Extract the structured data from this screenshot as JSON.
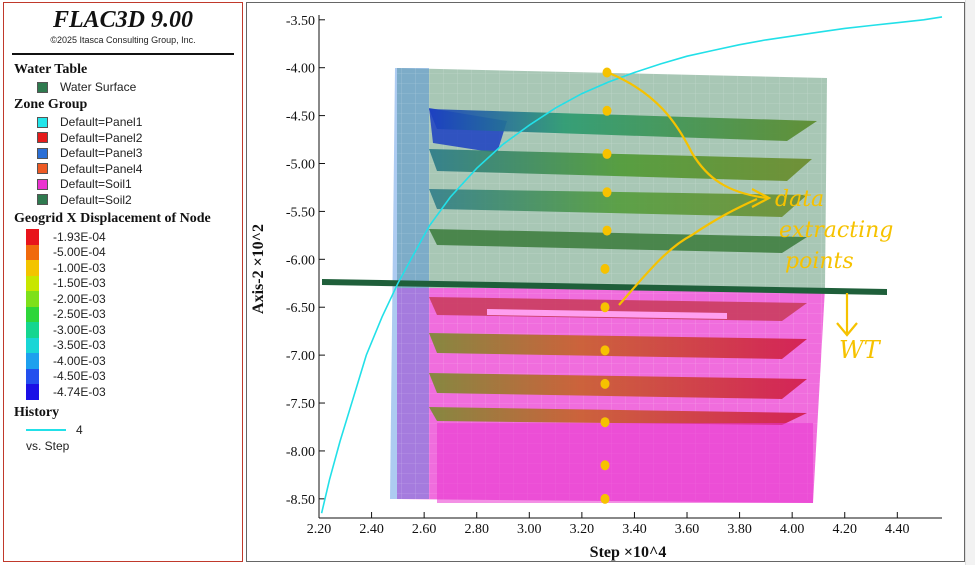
{
  "legend": {
    "app_title": "FLAC3D 9.00",
    "copyright": "©2025 Itasca Consulting Group, Inc.",
    "water_table": {
      "heading": "Water Table",
      "items": [
        {
          "label": "Water Surface",
          "color": "#2f7a4f"
        }
      ]
    },
    "zone_group": {
      "heading": "Zone Group",
      "items": [
        {
          "label": "Default=Panel1",
          "color": "#22e5ea"
        },
        {
          "label": "Default=Panel2",
          "color": "#e51b1b"
        },
        {
          "label": "Default=Panel3",
          "color": "#2a6fd6"
        },
        {
          "label": "Default=Panel4",
          "color": "#ee5a24"
        },
        {
          "label": "Default=Soil1",
          "color": "#ea34d0"
        },
        {
          "label": "Default=Soil2",
          "color": "#2f7a4f"
        }
      ]
    },
    "geogrid": {
      "heading": "Geogrid X Displacement of Node",
      "items": [
        {
          "label": "-1.93E-04",
          "color": "#e8141b"
        },
        {
          "label": "-5.00E-04",
          "color": "#f06a0c"
        },
        {
          "label": "-1.00E-03",
          "color": "#f3c400"
        },
        {
          "label": "-1.50E-03",
          "color": "#c8e600"
        },
        {
          "label": "-2.00E-03",
          "color": "#7ee01a"
        },
        {
          "label": "-2.50E-03",
          "color": "#2ed63a"
        },
        {
          "label": "-3.00E-03",
          "color": "#15d690"
        },
        {
          "label": "-3.50E-03",
          "color": "#19d6d6"
        },
        {
          "label": "-4.00E-03",
          "color": "#1ea0ee"
        },
        {
          "label": "-4.50E-03",
          "color": "#2350ee"
        },
        {
          "label": "-4.74E-03",
          "color": "#1b10e6"
        }
      ]
    },
    "history": {
      "heading": "History",
      "item_label": "4",
      "vs_label": "vs. Step",
      "color": "#22e0e8"
    }
  },
  "chart_data": {
    "type": "line",
    "xlabel": "Step ×10^4",
    "ylabel": "Axis-2 ×10^2",
    "xlim": [
      2.2,
      4.57
    ],
    "ylim": [
      -8.7,
      -3.45
    ],
    "x_ticks": [
      "2.20",
      "2.40",
      "2.60",
      "2.80",
      "3.00",
      "3.20",
      "3.40",
      "3.60",
      "3.80",
      "4.00",
      "4.20",
      "4.40"
    ],
    "y_ticks": [
      "-3.50",
      "-4.00",
      "-4.50",
      "-5.00",
      "-5.50",
      "-6.00",
      "-6.50",
      "-7.00",
      "-7.50",
      "-8.00",
      "-8.50"
    ],
    "series": [
      {
        "name": "4",
        "color": "#22e0e8",
        "x": [
          2.21,
          2.24,
          2.28,
          2.33,
          2.38,
          2.44,
          2.5,
          2.56,
          2.62,
          2.7,
          2.8,
          2.9,
          3.0,
          3.1,
          3.2,
          3.3,
          3.4,
          3.5,
          3.6,
          3.7,
          3.8,
          3.9,
          4.0,
          4.1,
          4.2,
          4.3,
          4.4,
          4.5,
          4.57
        ],
        "y": [
          -8.65,
          -8.3,
          -7.9,
          -7.45,
          -7.0,
          -6.6,
          -6.25,
          -5.95,
          -5.65,
          -5.35,
          -5.05,
          -4.8,
          -4.6,
          -4.42,
          -4.27,
          -4.15,
          -4.05,
          -3.96,
          -3.88,
          -3.82,
          -3.76,
          -3.71,
          -3.67,
          -3.63,
          -3.59,
          -3.56,
          -3.53,
          -3.5,
          -3.47
        ]
      }
    ],
    "grid": false,
    "annotations": {
      "text_data": "data",
      "text_extracting": "extracting",
      "text_points": "points",
      "text_wt": "WT",
      "marker_color": "#f6c200",
      "marker_y": [
        -4.05,
        -4.45,
        -4.9,
        -5.3,
        -5.7,
        -6.1,
        -6.5,
        -6.95,
        -7.3,
        -7.7,
        -8.15,
        -8.5
      ]
    }
  }
}
